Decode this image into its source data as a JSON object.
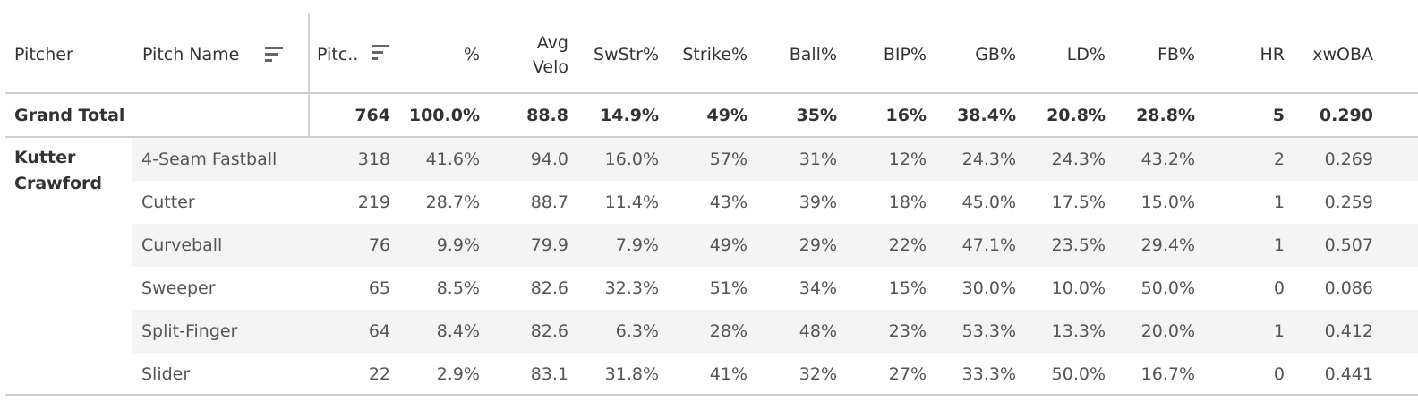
{
  "columns": {
    "pitcher": "Pitcher",
    "pitch_name": "Pitch Name",
    "pitches": "Pitc..",
    "pct": "%",
    "avg_velo_line1": "Avg",
    "avg_velo_line2": "Velo",
    "swstr": "SwStr%",
    "strike": "Strike%",
    "ball": "Ball%",
    "bip": "BIP%",
    "gb": "GB%",
    "ld": "LD%",
    "fb": "FB%",
    "hr": "HR",
    "xwoba": "xwOBA"
  },
  "grand_total": {
    "label": "Grand Total",
    "pitches": "764",
    "pct": "100.0%",
    "avg_velo": "88.8",
    "swstr": "14.9%",
    "strike": "49%",
    "ball": "35%",
    "bip": "16%",
    "gb": "38.4%",
    "ld": "20.8%",
    "fb": "28.8%",
    "hr": "5",
    "xwoba": "0.290"
  },
  "pitcher": {
    "first": "Kutter",
    "last": "Crawford"
  },
  "rows": [
    {
      "name": "4-Seam Fastball",
      "pitches": "318",
      "pct": "41.6%",
      "avg_velo": "94.0",
      "swstr": "16.0%",
      "strike": "57%",
      "ball": "31%",
      "bip": "12%",
      "gb": "24.3%",
      "ld": "24.3%",
      "fb": "43.2%",
      "hr": "2",
      "xwoba": "0.269"
    },
    {
      "name": "Cutter",
      "pitches": "219",
      "pct": "28.7%",
      "avg_velo": "88.7",
      "swstr": "11.4%",
      "strike": "43%",
      "ball": "39%",
      "bip": "18%",
      "gb": "45.0%",
      "ld": "17.5%",
      "fb": "15.0%",
      "hr": "1",
      "xwoba": "0.259"
    },
    {
      "name": "Curveball",
      "pitches": "76",
      "pct": "9.9%",
      "avg_velo": "79.9",
      "swstr": "7.9%",
      "strike": "49%",
      "ball": "29%",
      "bip": "22%",
      "gb": "47.1%",
      "ld": "23.5%",
      "fb": "29.4%",
      "hr": "1",
      "xwoba": "0.507"
    },
    {
      "name": "Sweeper",
      "pitches": "65",
      "pct": "8.5%",
      "avg_velo": "82.6",
      "swstr": "32.3%",
      "strike": "51%",
      "ball": "34%",
      "bip": "15%",
      "gb": "30.0%",
      "ld": "10.0%",
      "fb": "50.0%",
      "hr": "0",
      "xwoba": "0.086"
    },
    {
      "name": "Split-Finger",
      "pitches": "64",
      "pct": "8.4%",
      "avg_velo": "82.6",
      "swstr": "6.3%",
      "strike": "28%",
      "ball": "48%",
      "bip": "23%",
      "gb": "53.3%",
      "ld": "13.3%",
      "fb": "20.0%",
      "hr": "1",
      "xwoba": "0.412"
    },
    {
      "name": "Slider",
      "pitches": "22",
      "pct": "2.9%",
      "avg_velo": "83.1",
      "swstr": "31.8%",
      "strike": "41%",
      "ball": "32%",
      "bip": "27%",
      "gb": "33.3%",
      "ld": "50.0%",
      "fb": "16.7%",
      "hr": "0",
      "xwoba": "0.441"
    }
  ],
  "icons": {
    "pitch_name_sort": "sort-descending-icon",
    "pitches_sort": "sort-descending-icon"
  }
}
